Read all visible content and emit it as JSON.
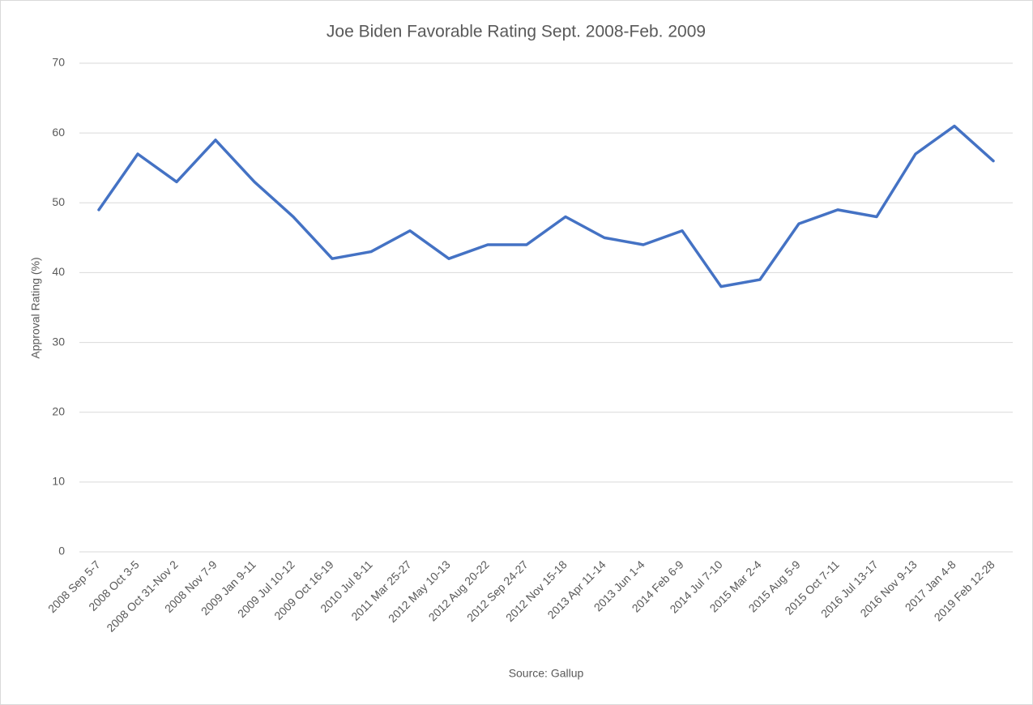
{
  "chart_data": {
    "type": "line",
    "title": "Joe Biden Favorable Rating Sept. 2008-Feb. 2009",
    "y_label": "Approval Rating (%)",
    "source": "Source: Gallup",
    "categories": [
      "2008 Sep 5-7",
      "2008 Oct 3-5",
      "2008 Oct 31-Nov 2",
      "2008 Nov 7-9",
      "2009 Jan 9-11",
      "2009 Jul 10-12",
      "2009 Oct 16-19",
      "2010 Jul 8-11",
      "2011 Mar 25-27",
      "2012 May 10-13",
      "2012 Aug 20-22",
      "2012 Sep 24-27",
      "2012 Nov 15-18",
      "2013 Apr 11-14",
      "2013 Jun 1-4",
      "2014 Feb 6-9",
      "2014 Jul 7-10",
      "2015 Mar 2-4",
      "2015 Aug 5-9",
      "2015 Oct 7-11",
      "2016 Jul 13-17",
      "2016 Nov 9-13",
      "2017 Jan 4-8",
      "2019 Feb 12-28"
    ],
    "values": [
      49,
      57,
      53,
      59,
      53,
      48,
      42,
      43,
      46,
      42,
      44,
      44,
      48,
      45,
      44,
      46,
      38,
      39,
      47,
      49,
      48,
      57,
      61,
      56
    ],
    "color": "#4472c4",
    "ylim": [
      0,
      70
    ],
    "yticks": [
      0,
      10,
      20,
      30,
      40,
      50,
      60,
      70
    ],
    "grid": true
  }
}
